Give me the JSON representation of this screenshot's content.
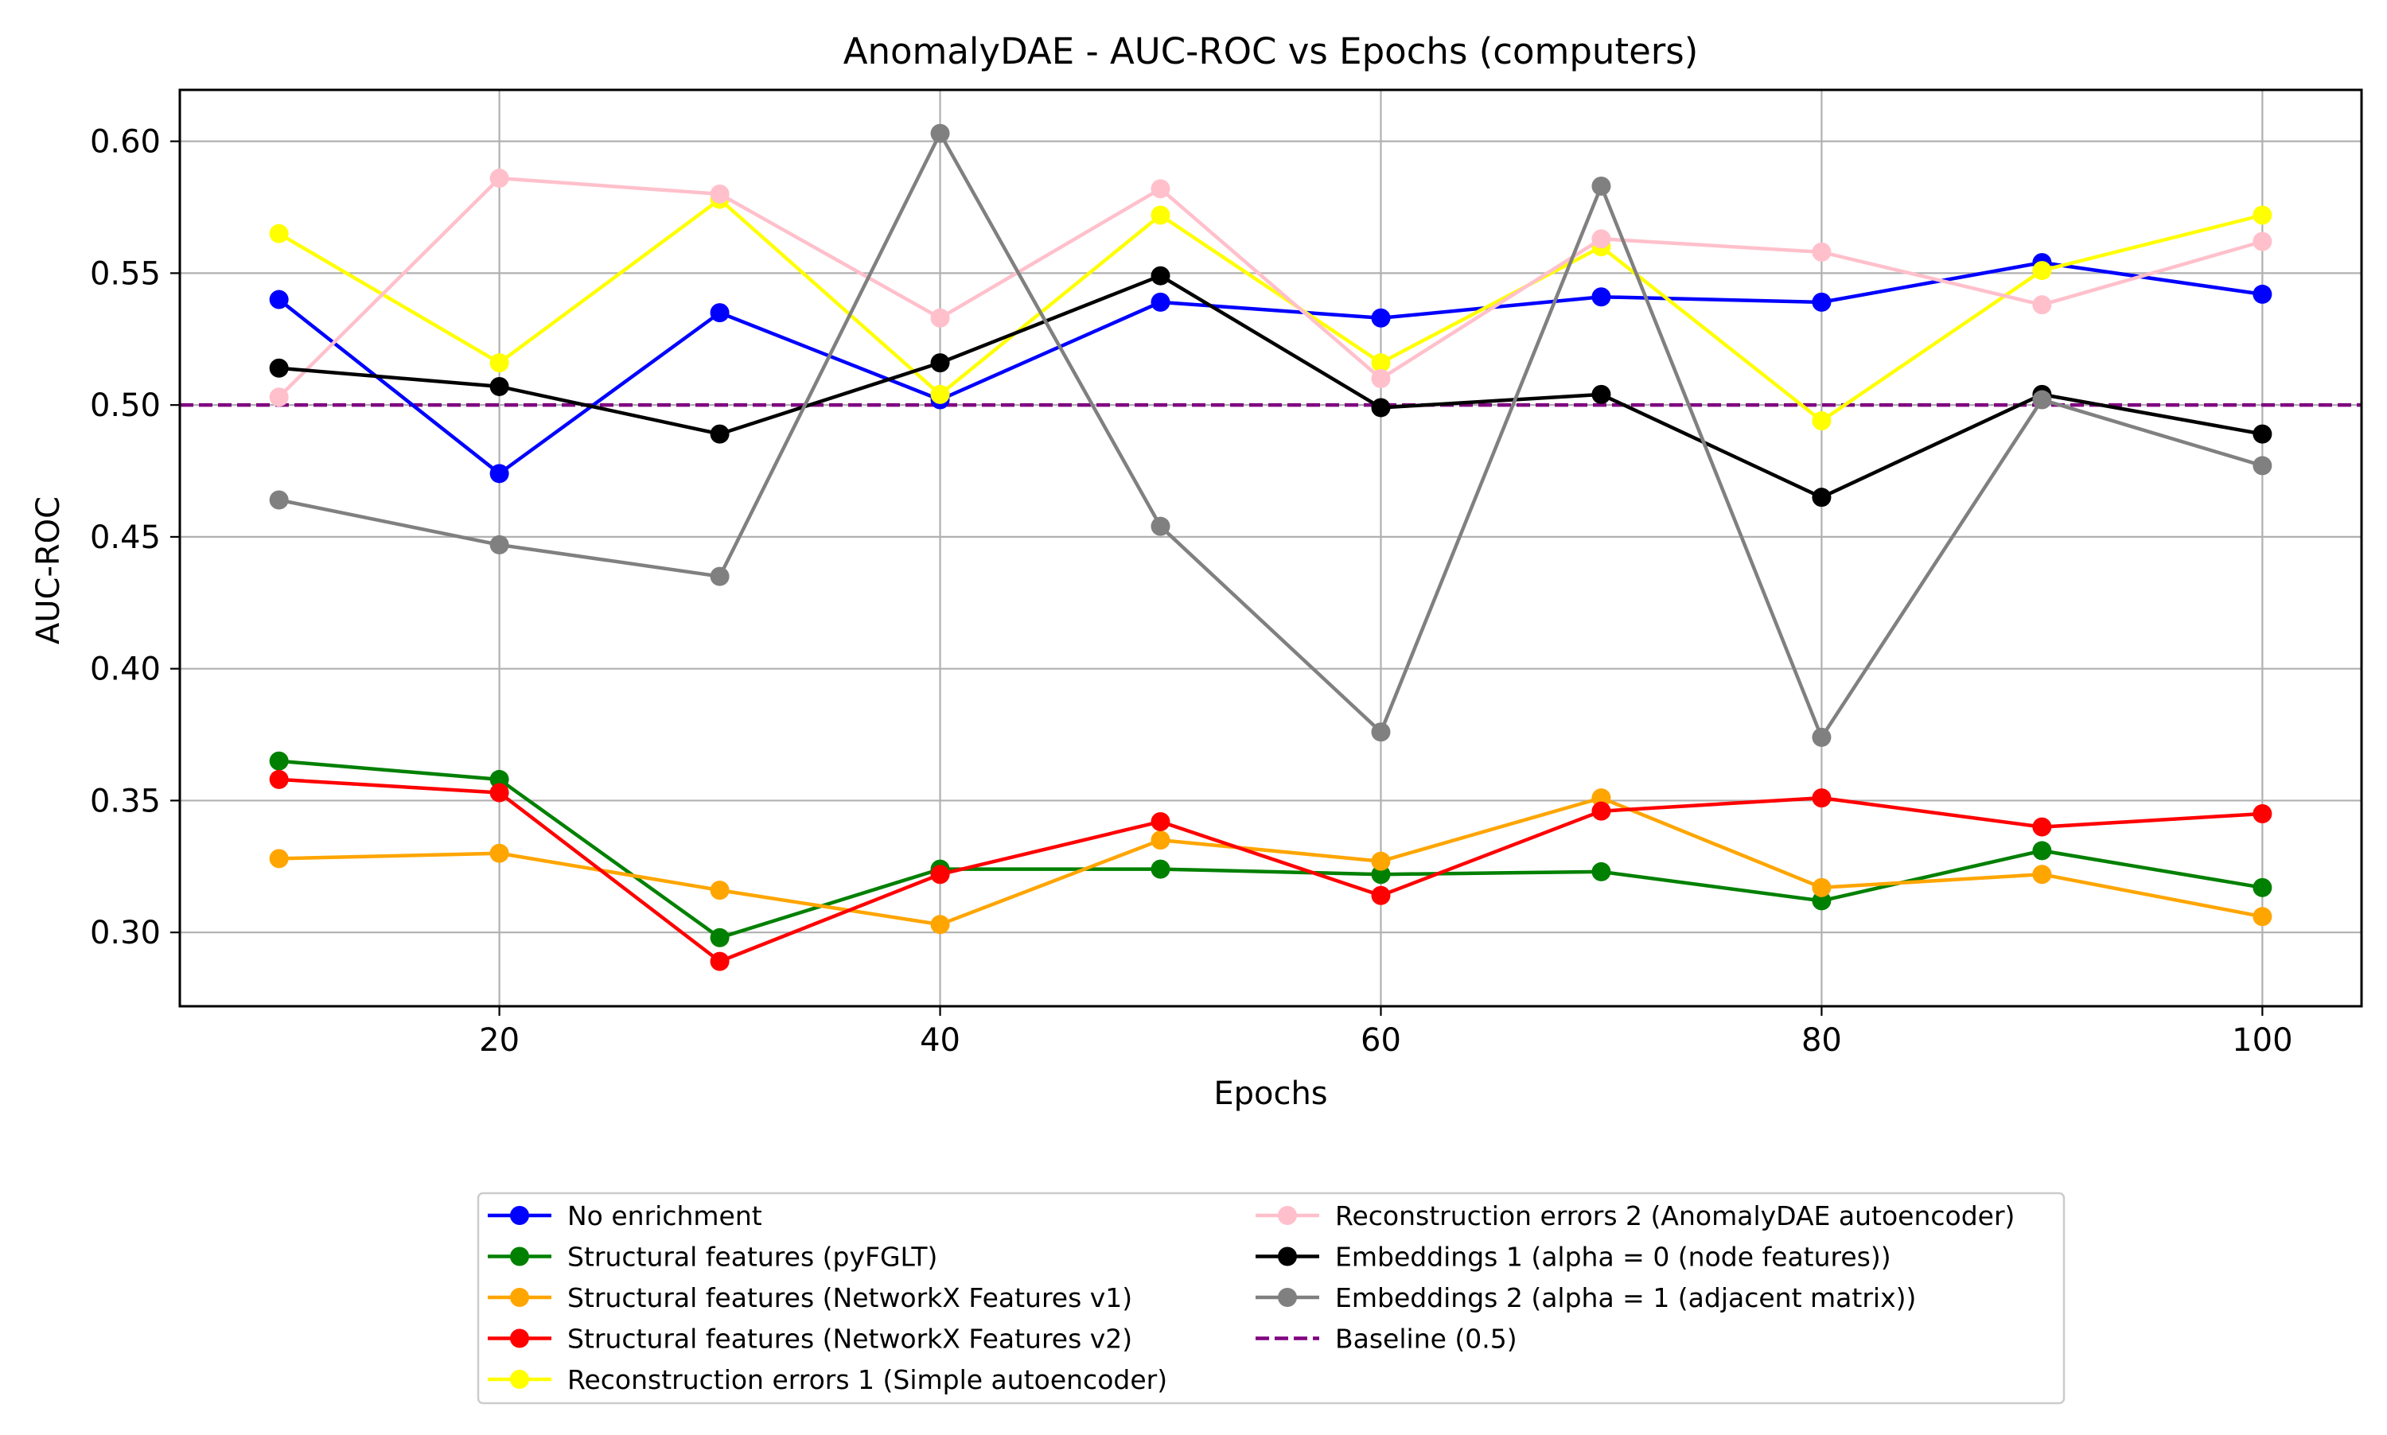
{
  "chart_data": {
    "type": "line",
    "title": "AnomalyDAE - AUC-ROC vs Epochs (computers)",
    "xlabel": "Epochs",
    "ylabel": "AUC-ROC",
    "xlim": [
      5.5,
      104.5
    ],
    "ylim": [
      0.272,
      0.6195
    ],
    "xticks": [
      20,
      40,
      60,
      80,
      100
    ],
    "yticks": [
      0.3,
      0.35,
      0.4,
      0.45,
      0.5,
      0.55,
      0.6
    ],
    "grid": true,
    "legend_position": "bottom-center",
    "x": [
      10,
      20,
      30,
      40,
      50,
      60,
      70,
      80,
      90,
      100
    ],
    "series": [
      {
        "name": "No enrichment",
        "color": "#0000ff",
        "values": [
          0.54,
          0.474,
          0.535,
          0.502,
          0.539,
          0.533,
          0.541,
          0.539,
          0.554,
          0.542
        ]
      },
      {
        "name": "Structural features (pyFGLT)",
        "color": "#008000",
        "values": [
          0.365,
          0.358,
          0.298,
          0.324,
          0.324,
          0.322,
          0.323,
          0.312,
          0.331,
          0.317
        ]
      },
      {
        "name": "Structural features (NetworkX Features v1)",
        "color": "#ffa500",
        "values": [
          0.328,
          0.33,
          0.316,
          0.303,
          0.335,
          0.327,
          0.351,
          0.317,
          0.322,
          0.306
        ]
      },
      {
        "name": "Structural features (NetworkX Features v2)",
        "color": "#ff0000",
        "values": [
          0.358,
          0.353,
          0.289,
          0.322,
          0.342,
          0.314,
          0.346,
          0.351,
          0.34,
          0.345
        ]
      },
      {
        "name": "Reconstruction errors 1 (Simple autoencoder)",
        "color": "#ffff00",
        "values": [
          0.565,
          0.516,
          0.578,
          0.504,
          0.572,
          0.516,
          0.56,
          0.494,
          0.551,
          0.572
        ]
      },
      {
        "name": "Reconstruction errors 2 (AnomalyDAE autoencoder)",
        "color": "#ffc0cb",
        "values": [
          0.503,
          0.586,
          0.58,
          0.533,
          0.582,
          0.51,
          0.563,
          0.558,
          0.538,
          0.562
        ]
      },
      {
        "name": "Embeddings 1 (alpha = 0 (node features))",
        "color": "#000000",
        "values": [
          0.514,
          0.507,
          0.489,
          0.516,
          0.549,
          0.499,
          0.504,
          0.465,
          0.504,
          0.489
        ]
      },
      {
        "name": "Embeddings 2 (alpha = 1 (adjacent matrix))",
        "color": "#808080",
        "values": [
          0.464,
          0.447,
          0.435,
          0.603,
          0.454,
          0.376,
          0.583,
          0.374,
          0.502,
          0.477
        ]
      }
    ],
    "baseline": {
      "name": "Baseline (0.5)",
      "value": 0.5,
      "color": "#800080",
      "style": "dashed"
    }
  }
}
